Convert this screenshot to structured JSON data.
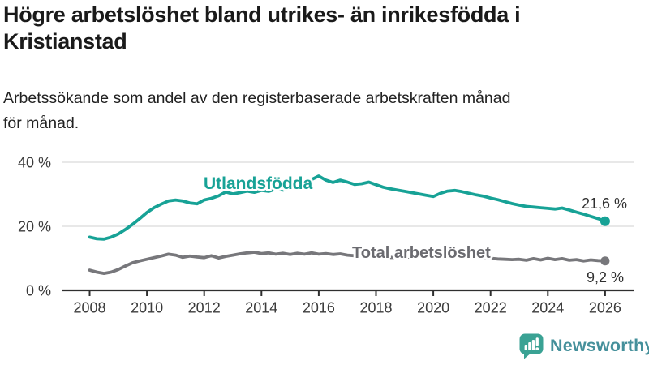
{
  "header": {
    "title": "Högre arbetslöshet bland utrikes- än inrikesfödda i Kristianstad",
    "title_lines": [
      "Högre arbetslöshet bland utrikes- än inrikesfödda i",
      "Kristianstad"
    ],
    "subtitle": "Arbetssökande som andel av den registerbaserade arbetskraften månad för månad.",
    "subtitle_lines": [
      "Arbetssökande som andel av den registerbaserade arbetskraften månad",
      "för månad."
    ]
  },
  "chart_data": {
    "type": "line",
    "title": "Högre arbetslöshet bland utrikes- än inrikesfödda i Kristianstad",
    "subtitle": "Arbetssökande som andel av den registerbaserade arbetskraften månad för månad.",
    "xlabel": "",
    "ylabel": "",
    "ylim": [
      0,
      44
    ],
    "xlim": [
      2007.1,
      2027.1
    ],
    "grid": "horizontal",
    "legend": "inline-labels",
    "x": [
      2008,
      2008.25,
      2008.5,
      2008.75,
      2009,
      2009.25,
      2009.5,
      2009.75,
      2010,
      2010.25,
      2010.5,
      2010.75,
      2011,
      2011.25,
      2011.5,
      2011.75,
      2012,
      2012.25,
      2012.5,
      2012.75,
      2013,
      2013.25,
      2013.5,
      2013.75,
      2014,
      2014.25,
      2014.5,
      2014.75,
      2015,
      2015.25,
      2015.5,
      2015.75,
      2016,
      2016.25,
      2016.5,
      2016.75,
      2017,
      2017.25,
      2017.5,
      2017.75,
      2018,
      2018.25,
      2018.5,
      2018.75,
      2019,
      2019.25,
      2019.5,
      2019.75,
      2020,
      2020.25,
      2020.5,
      2020.75,
      2021,
      2021.25,
      2021.5,
      2021.75,
      2022,
      2022.25,
      2022.5,
      2022.75,
      2023,
      2023.25,
      2023.5,
      2023.75,
      2024,
      2024.25,
      2024.5,
      2024.75,
      2025,
      2025.25,
      2025.5,
      2025.75,
      2026
    ],
    "series": [
      {
        "name": "Utlandsfödda",
        "color": "#17A296",
        "end_value": 21.6,
        "end_label": "21,6 %",
        "values": [
          16.6,
          16.1,
          16.0,
          16.6,
          17.6,
          19.0,
          20.6,
          22.4,
          24.3,
          25.8,
          26.9,
          27.9,
          28.2,
          27.9,
          27.3,
          27.0,
          28.2,
          28.7,
          29.5,
          30.7,
          30.1,
          30.5,
          31.0,
          30.6,
          31.2,
          30.9,
          31.6,
          31.3,
          32.0,
          32.7,
          33.3,
          34.6,
          35.7,
          34.4,
          33.7,
          34.4,
          33.8,
          33.1,
          33.3,
          33.8,
          33.0,
          32.2,
          31.7,
          31.3,
          30.9,
          30.5,
          30.1,
          29.7,
          29.3,
          30.3,
          31.0,
          31.2,
          30.8,
          30.3,
          29.8,
          29.4,
          28.8,
          28.3,
          27.7,
          27.1,
          26.6,
          26.2,
          26.0,
          25.8,
          25.6,
          25.4,
          25.7,
          25.1,
          24.4,
          23.8,
          23.1,
          22.4,
          21.6
        ]
      },
      {
        "name": "Total arbetslöshet",
        "color": "#77777B",
        "end_value": 9.2,
        "end_label": "9,2 %",
        "values": [
          6.3,
          5.7,
          5.3,
          5.7,
          6.5,
          7.6,
          8.6,
          9.2,
          9.7,
          10.2,
          10.7,
          11.3,
          11.0,
          10.3,
          10.7,
          10.4,
          10.2,
          10.8,
          10.1,
          10.6,
          11.0,
          11.4,
          11.7,
          11.9,
          11.5,
          11.7,
          11.3,
          11.6,
          11.2,
          11.6,
          11.3,
          11.7,
          11.3,
          11.5,
          11.2,
          11.4,
          11.0,
          10.8,
          10.6,
          10.5,
          10.4,
          10.2,
          10.3,
          10.2,
          10.3,
          10.4,
          10.5,
          10.7,
          10.9,
          11.6,
          11.9,
          11.7,
          11.4,
          11.0,
          10.6,
          10.3,
          10.0,
          9.8,
          9.7,
          9.6,
          9.7,
          9.4,
          9.9,
          9.5,
          10.0,
          9.6,
          9.9,
          9.4,
          9.6,
          9.2,
          9.5,
          9.3,
          9.2
        ]
      }
    ],
    "y_ticks": [
      {
        "value": 0,
        "label": "0 %"
      },
      {
        "value": 20,
        "label": "20 %"
      },
      {
        "value": 40,
        "label": "40 %"
      }
    ],
    "x_ticks": [
      {
        "value": 2008,
        "label": "2008"
      },
      {
        "value": 2010,
        "label": "2010"
      },
      {
        "value": 2012,
        "label": "2012"
      },
      {
        "value": 2014,
        "label": "2014"
      },
      {
        "value": 2016,
        "label": "2016"
      },
      {
        "value": 2018,
        "label": "2018"
      },
      {
        "value": 2020,
        "label": "2020"
      },
      {
        "value": 2022,
        "label": "2022"
      },
      {
        "value": 2024,
        "label": "2024"
      },
      {
        "value": 2026,
        "label": "2026"
      }
    ],
    "colors": {
      "grid": "#D9D9D9",
      "axis": "#2F2F2F",
      "tick_text": "#3B3B3B",
      "annotation_text": "#2F2F2F"
    }
  },
  "footer": {
    "brand": "Newsworthy",
    "brand_color": "#45909B",
    "icon_color": "#3AA294"
  }
}
